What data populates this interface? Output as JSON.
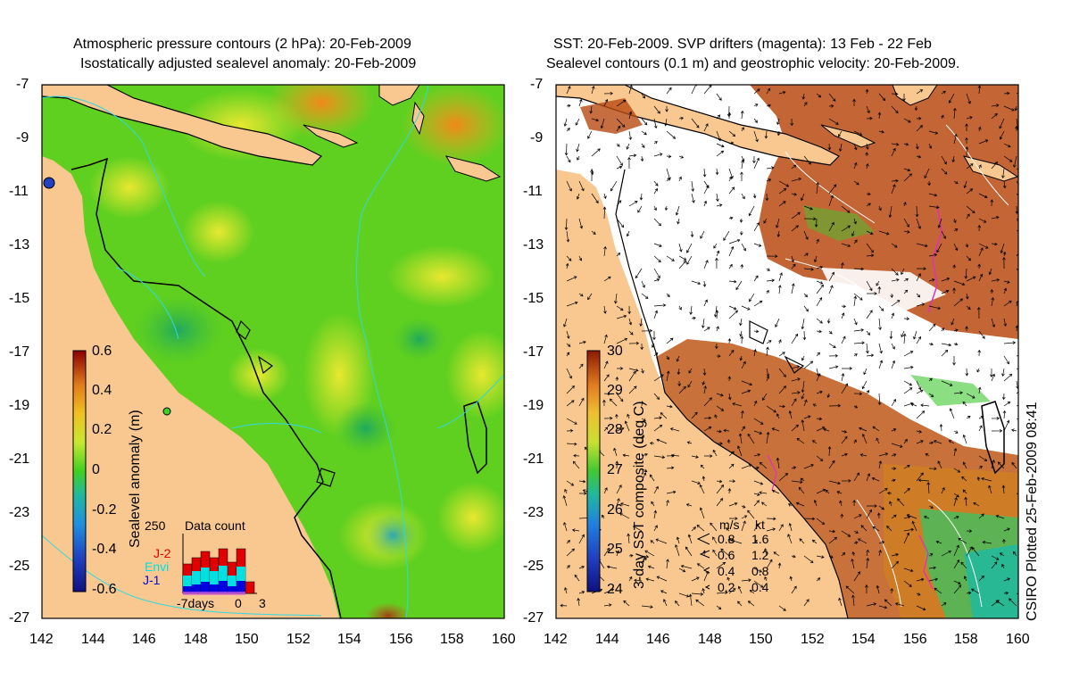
{
  "left_panel": {
    "title_line1": "Atmospheric pressure contours (2 hPa): 20-Feb-2009",
    "title_line2": "Isostatically adjusted sealevel anomaly: 20-Feb-2009",
    "colorbar": {
      "label": "Sealevel anomaly (m)",
      "ticks": [
        "0.6",
        "0.4",
        "0.2",
        "0",
        "-0.2",
        "-0.4",
        "-0.6"
      ],
      "colors": [
        "#8b0000",
        "#c0301a",
        "#e07a1a",
        "#f0c020",
        "#c8e830",
        "#40d020",
        "#20b8a0",
        "#2090e0",
        "#2040c0",
        "#101080"
      ]
    },
    "data_count": {
      "title": "Data count",
      "ymax_label": "250",
      "series_labels": [
        {
          "name": "J-2",
          "color": "#e00000"
        },
        {
          "name": "Envi",
          "color": "#00e0e0"
        },
        {
          "name": "J-1",
          "color": "#0000e0"
        }
      ],
      "x_labels": [
        "-7days",
        "0",
        "3"
      ]
    }
  },
  "right_panel": {
    "title_line1": "SST: 20-Feb-2009. SVP drifters (magenta): 13 Feb - 22 Feb",
    "title_line2": "Sealevel contours (0.1 m) and geostrophic velocity: 20-Feb-2009.",
    "colorbar": {
      "label": "3-day SST composite (deg C)",
      "ticks": [
        "30",
        "29",
        "28",
        "27",
        "26",
        "25",
        "24"
      ],
      "colors": [
        "#8b1a00",
        "#c04010",
        "#e07a20",
        "#f0c030",
        "#c8e030",
        "#40c830",
        "#20b8a0",
        "#2080e0",
        "#2040c0",
        "#101080"
      ]
    },
    "velocity_legend": {
      "header_ms": "m/s",
      "header_kt": "kt",
      "rows": [
        {
          "ms": "0.8",
          "kt": "1.6"
        },
        {
          "ms": "0.6",
          "kt": "1.2"
        },
        {
          "ms": "0.4",
          "kt": "0.8"
        },
        {
          "ms": "0.2",
          "kt": "0.4"
        }
      ]
    },
    "credit": "CSIRO Plotted 25-Feb-2009 08:41"
  },
  "axes": {
    "lat_labels": [
      "-7",
      "-9",
      "-11",
      "-13",
      "-15",
      "-17",
      "-19",
      "-21",
      "-23",
      "-25",
      "-27"
    ],
    "lon_labels": [
      "142",
      "144",
      "146",
      "148",
      "150",
      "152",
      "154",
      "156",
      "158",
      "160"
    ]
  },
  "colors": {
    "land": "#f9c890",
    "sea_green": "#60d020",
    "ocean_white": "#ffffff",
    "warm_sst": "#b84a10"
  }
}
